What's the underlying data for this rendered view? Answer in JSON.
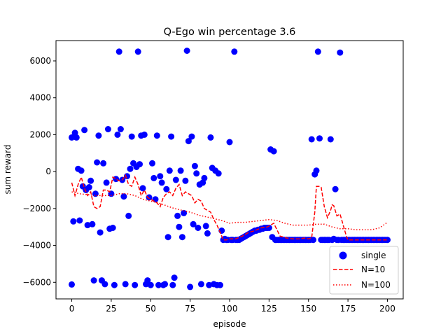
{
  "chart_data": {
    "type": "scatter",
    "title": "Q-Ego win percentage   3.6",
    "xlabel": "episode",
    "ylabel": "sum reward",
    "xlim": [
      -10,
      210
    ],
    "ylim": [
      -6900,
      7100
    ],
    "xticks": [
      0,
      25,
      50,
      75,
      100,
      125,
      150,
      175,
      200
    ],
    "yticks": [
      -6000,
      -4000,
      -2000,
      0,
      2000,
      4000,
      6000
    ],
    "legend_position": "lower-right",
    "grid": false,
    "series": [
      {
        "name": "single",
        "kind": "points",
        "color": "#0000ff",
        "points": [
          [
            0,
            1850
          ],
          [
            0,
            -6120
          ],
          [
            1,
            -2700
          ],
          [
            2,
            2100
          ],
          [
            3,
            1850
          ],
          [
            4,
            150
          ],
          [
            5,
            -2650
          ],
          [
            6,
            50
          ],
          [
            7,
            -800
          ],
          [
            8,
            2250
          ],
          [
            9,
            -1000
          ],
          [
            10,
            -2900
          ],
          [
            11,
            -850
          ],
          [
            12,
            -500
          ],
          [
            13,
            -2850
          ],
          [
            14,
            -5900
          ],
          [
            15,
            -1200
          ],
          [
            16,
            500
          ],
          [
            17,
            1950
          ],
          [
            18,
            -3300
          ],
          [
            19,
            -5900
          ],
          [
            20,
            450
          ],
          [
            21,
            -6100
          ],
          [
            22,
            -600
          ],
          [
            23,
            2300
          ],
          [
            24,
            -3100
          ],
          [
            25,
            -1200
          ],
          [
            26,
            -3050
          ],
          [
            27,
            -6150
          ],
          [
            28,
            -400
          ],
          [
            29,
            2000
          ],
          [
            30,
            6500
          ],
          [
            31,
            2300
          ],
          [
            32,
            -450
          ],
          [
            33,
            -1350
          ],
          [
            34,
            -6100
          ],
          [
            35,
            -250
          ],
          [
            36,
            -2400
          ],
          [
            37,
            150
          ],
          [
            38,
            1900
          ],
          [
            39,
            450
          ],
          [
            40,
            -6150
          ],
          [
            41,
            250
          ],
          [
            42,
            6500
          ],
          [
            43,
            400
          ],
          [
            44,
            1950
          ],
          [
            45,
            -900
          ],
          [
            46,
            2000
          ],
          [
            47,
            -6100
          ],
          [
            48,
            -5900
          ],
          [
            49,
            -1400
          ],
          [
            50,
            -6150
          ],
          [
            51,
            450
          ],
          [
            52,
            -350
          ],
          [
            53,
            -1500
          ],
          [
            54,
            1950
          ],
          [
            55,
            -6150
          ],
          [
            56,
            -250
          ],
          [
            57,
            -600
          ],
          [
            58,
            -6150
          ],
          [
            59,
            -6100
          ],
          [
            60,
            -950
          ],
          [
            61,
            -3550
          ],
          [
            62,
            50
          ],
          [
            63,
            1900
          ],
          [
            64,
            -6150
          ],
          [
            65,
            -5750
          ],
          [
            66,
            -450
          ],
          [
            67,
            -2400
          ],
          [
            68,
            -3000
          ],
          [
            69,
            50
          ],
          [
            70,
            -3550
          ],
          [
            71,
            -2250
          ],
          [
            72,
            -500
          ],
          [
            73,
            6550
          ],
          [
            74,
            1650
          ],
          [
            75,
            -6250
          ],
          [
            76,
            1900
          ],
          [
            77,
            -2850
          ],
          [
            78,
            300
          ],
          [
            79,
            -100
          ],
          [
            80,
            -3050
          ],
          [
            81,
            -700
          ],
          [
            82,
            -6100
          ],
          [
            83,
            -600
          ],
          [
            84,
            -350
          ],
          [
            85,
            -2950
          ],
          [
            86,
            -3350
          ],
          [
            87,
            -6150
          ],
          [
            88,
            1850
          ],
          [
            89,
            200
          ],
          [
            90,
            -6100
          ],
          [
            91,
            50
          ],
          [
            92,
            -6150
          ],
          [
            93,
            -100
          ],
          [
            94,
            -6150
          ],
          [
            95,
            -3200
          ],
          [
            96,
            -3700
          ],
          [
            97,
            -3650
          ],
          [
            98,
            -3700
          ],
          [
            99,
            -3700
          ],
          [
            100,
            1600
          ],
          [
            101,
            -3700
          ],
          [
            102,
            -3700
          ],
          [
            103,
            6500
          ],
          [
            104,
            -3700
          ],
          [
            105,
            -3700
          ],
          [
            106,
            -3700
          ],
          [
            107,
            -3650
          ],
          [
            108,
            -3600
          ],
          [
            109,
            -3550
          ],
          [
            110,
            -3500
          ],
          [
            111,
            -3450
          ],
          [
            112,
            -3400
          ],
          [
            113,
            -3350
          ],
          [
            114,
            -3300
          ],
          [
            115,
            -3250
          ],
          [
            116,
            -3200
          ],
          [
            117,
            -3200
          ],
          [
            118,
            -3150
          ],
          [
            119,
            -3150
          ],
          [
            120,
            -3100
          ],
          [
            121,
            -3100
          ],
          [
            122,
            -3050
          ],
          [
            123,
            -3050
          ],
          [
            124,
            -3050
          ],
          [
            125,
            -3050
          ],
          [
            126,
            1200
          ],
          [
            127,
            -3550
          ],
          [
            128,
            1100
          ],
          [
            129,
            -3700
          ],
          [
            130,
            -3700
          ],
          [
            131,
            -3700
          ],
          [
            132,
            -3700
          ],
          [
            133,
            -3700
          ],
          [
            134,
            -3700
          ],
          [
            135,
            -3700
          ],
          [
            136,
            -3700
          ],
          [
            137,
            -3700
          ],
          [
            138,
            -3700
          ],
          [
            139,
            -3700
          ],
          [
            140,
            -3700
          ],
          [
            141,
            -3700
          ],
          [
            142,
            -3700
          ],
          [
            143,
            -3700
          ],
          [
            144,
            -3700
          ],
          [
            145,
            -3700
          ],
          [
            146,
            -3700
          ],
          [
            147,
            -3700
          ],
          [
            148,
            -3700
          ],
          [
            149,
            -3700
          ],
          [
            150,
            -3700
          ],
          [
            151,
            -3700
          ],
          [
            152,
            1750
          ],
          [
            153,
            -3700
          ],
          [
            154,
            -150
          ],
          [
            155,
            50
          ],
          [
            156,
            6500
          ],
          [
            157,
            1800
          ],
          [
            158,
            -3700
          ],
          [
            159,
            -3700
          ],
          [
            160,
            -3700
          ],
          [
            161,
            -3700
          ],
          [
            162,
            -3700
          ],
          [
            163,
            -3700
          ],
          [
            164,
            1750
          ],
          [
            165,
            -3700
          ],
          [
            166,
            -3650
          ],
          [
            167,
            -950
          ],
          [
            168,
            -3700
          ],
          [
            169,
            -3700
          ],
          [
            170,
            6450
          ],
          [
            171,
            -3700
          ],
          [
            172,
            -3700
          ],
          [
            173,
            -3700
          ],
          [
            174,
            -3700
          ],
          [
            175,
            -3700
          ],
          [
            176,
            -3700
          ],
          [
            177,
            -3700
          ],
          [
            178,
            -3700
          ],
          [
            179,
            -3700
          ],
          [
            180,
            -3700
          ],
          [
            181,
            -3700
          ],
          [
            182,
            -3700
          ],
          [
            183,
            -3700
          ],
          [
            184,
            -3700
          ],
          [
            185,
            -3700
          ],
          [
            186,
            -3700
          ],
          [
            187,
            -3700
          ],
          [
            188,
            -3700
          ],
          [
            189,
            -3700
          ],
          [
            190,
            -3700
          ],
          [
            191,
            -3700
          ],
          [
            192,
            -3700
          ],
          [
            193,
            -3700
          ],
          [
            194,
            -3700
          ],
          [
            195,
            -3700
          ],
          [
            196,
            -3700
          ],
          [
            197,
            -3700
          ],
          [
            198,
            -3700
          ],
          [
            199,
            -3700
          ],
          [
            200,
            -3700
          ]
        ]
      },
      {
        "name": "N=10",
        "kind": "dashed",
        "color": "#ff0000",
        "x": [
          0,
          2,
          4,
          6,
          8,
          10,
          12,
          14,
          16,
          18,
          20,
          22,
          24,
          26,
          28,
          30,
          32,
          34,
          36,
          38,
          40,
          42,
          44,
          46,
          48,
          50,
          52,
          54,
          56,
          58,
          60,
          62,
          64,
          66,
          68,
          70,
          72,
          74,
          76,
          78,
          80,
          82,
          84,
          86,
          88,
          90,
          92,
          94,
          96,
          98,
          100,
          104,
          108,
          112,
          116,
          120,
          124,
          128,
          132,
          136,
          140,
          144,
          148,
          150,
          152,
          154,
          155,
          157,
          158,
          160,
          162,
          164,
          165,
          166,
          168,
          170,
          172,
          174,
          175,
          176,
          178,
          180,
          184,
          188,
          192,
          196,
          200
        ],
        "values": [
          -600,
          -1300,
          -700,
          -300,
          -900,
          -1300,
          -1100,
          -1900,
          -2000,
          -1900,
          -1000,
          -1000,
          -1100,
          -300,
          -400,
          -500,
          -450,
          -200,
          -700,
          -800,
          -300,
          -700,
          -1300,
          -1000,
          -1400,
          -1500,
          -1600,
          -1700,
          -1900,
          -1400,
          -1200,
          -1100,
          -1300,
          -900,
          -700,
          -1300,
          -1100,
          -1200,
          -1300,
          -1700,
          -1500,
          -1600,
          -2000,
          -2100,
          -2200,
          -2600,
          -2900,
          -3300,
          -3700,
          -3700,
          -3650,
          -3650,
          -3500,
          -3300,
          -3200,
          -3050,
          -3000,
          -2800,
          -3500,
          -3600,
          -3650,
          -3650,
          -3600,
          -3650,
          -3600,
          -2200,
          -800,
          -800,
          -850,
          -1900,
          -2500,
          -2100,
          -1800,
          -1850,
          -2400,
          -2300,
          -2900,
          -3500,
          -3700,
          -3700,
          -3700,
          -3700,
          -3700,
          -3700,
          -3700,
          -3700,
          -3700
        ]
      },
      {
        "name": "N=100",
        "kind": "dotted",
        "color": "#ff0000",
        "x": [
          0,
          5,
          10,
          15,
          20,
          25,
          30,
          35,
          40,
          45,
          50,
          55,
          60,
          65,
          70,
          75,
          80,
          85,
          90,
          95,
          100,
          105,
          110,
          115,
          120,
          125,
          130,
          135,
          140,
          145,
          150,
          155,
          160,
          165,
          170,
          175,
          180,
          185,
          190,
          195,
          200
        ],
        "values": [
          -1100,
          -1200,
          -1250,
          -1300,
          -1300,
          -1300,
          -1200,
          -1200,
          -1300,
          -1500,
          -1600,
          -1700,
          -1850,
          -2000,
          -2100,
          -2200,
          -2350,
          -2450,
          -2550,
          -2650,
          -2800,
          -2750,
          -2750,
          -2700,
          -2650,
          -2600,
          -2650,
          -2800,
          -2900,
          -2900,
          -2900,
          -2850,
          -2850,
          -3000,
          -3100,
          -3100,
          -3150,
          -3150,
          -3150,
          -3050,
          -2750
        ]
      }
    ]
  }
}
